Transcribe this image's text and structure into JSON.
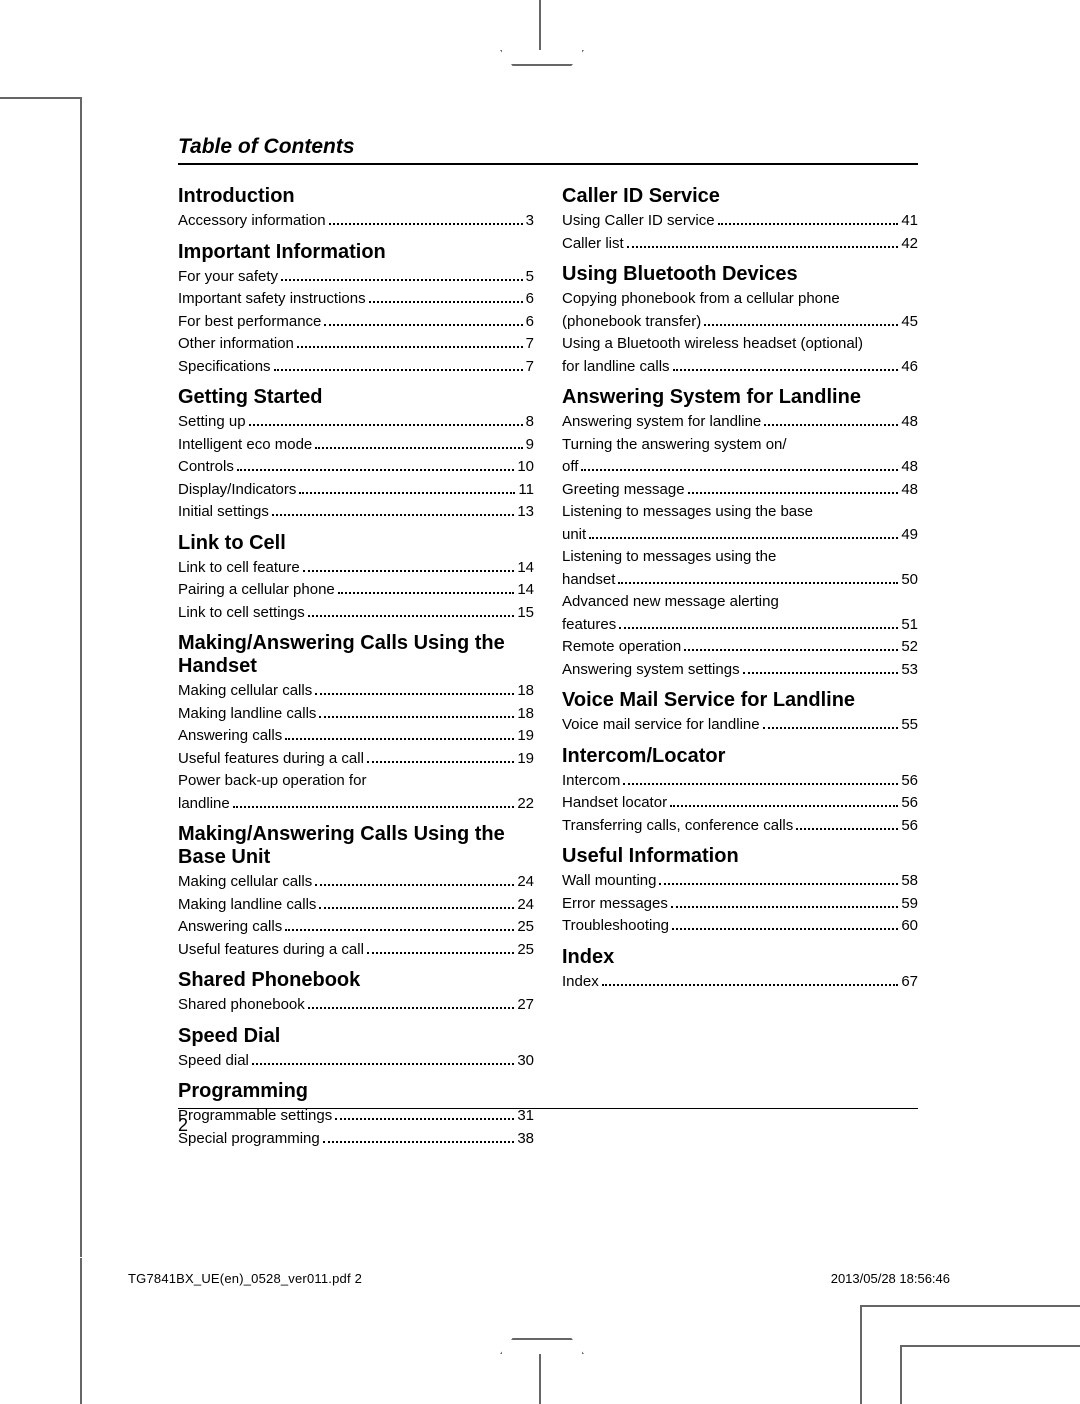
{
  "page": {
    "heading": "Table of Contents",
    "page_number": "2",
    "footer_left": "TG7841BX_UE(en)_0528_ver011.pdf   2",
    "footer_right": "2013/05/28   18:56:46"
  },
  "left": [
    {
      "type": "section",
      "title": "Introduction"
    },
    {
      "type": "entry",
      "label": "Accessory information",
      "page": "3"
    },
    {
      "type": "section",
      "title": "Important Information"
    },
    {
      "type": "entry",
      "label": "For your safety",
      "page": "5"
    },
    {
      "type": "entry",
      "label": "Important safety instructions",
      "page": "6"
    },
    {
      "type": "entry",
      "label": "For best performance",
      "page": "6"
    },
    {
      "type": "entry",
      "label": "Other information",
      "page": "7"
    },
    {
      "type": "entry",
      "label": "Specifications",
      "page": "7"
    },
    {
      "type": "section",
      "title": "Getting Started"
    },
    {
      "type": "entry",
      "label": "Setting up",
      "page": "8"
    },
    {
      "type": "entry",
      "label": "Intelligent eco mode",
      "page": "9"
    },
    {
      "type": "entry",
      "label": "Controls",
      "page": "10"
    },
    {
      "type": "entry",
      "label": "Display/Indicators",
      "page": "11"
    },
    {
      "type": "entry",
      "label": "Initial settings",
      "page": "13"
    },
    {
      "type": "section",
      "title": "Link to Cell"
    },
    {
      "type": "entry",
      "label": "Link to cell feature",
      "page": "14"
    },
    {
      "type": "entry",
      "label": "Pairing a cellular phone",
      "page": "14"
    },
    {
      "type": "entry",
      "label": "Link to cell settings",
      "page": "15"
    },
    {
      "type": "section",
      "title": "Making/Answering Calls Using the Handset"
    },
    {
      "type": "entry",
      "label": "Making cellular calls",
      "page": "18"
    },
    {
      "type": "entry",
      "label": "Making landline calls",
      "page": "18"
    },
    {
      "type": "entry",
      "label": "Answering calls",
      "page": "19"
    },
    {
      "type": "entry",
      "label": "Useful features during a call",
      "page": "19"
    },
    {
      "type": "cont",
      "label": "Power back-up operation for"
    },
    {
      "type": "entry",
      "label": "landline",
      "page": "22"
    },
    {
      "type": "section",
      "title": "Making/Answering Calls Using the Base Unit"
    },
    {
      "type": "entry",
      "label": "Making cellular calls",
      "page": "24"
    },
    {
      "type": "entry",
      "label": "Making landline calls",
      "page": "24"
    },
    {
      "type": "entry",
      "label": "Answering calls",
      "page": "25"
    },
    {
      "type": "entry",
      "label": "Useful features during a call",
      "page": "25"
    },
    {
      "type": "section",
      "title": "Shared Phonebook"
    },
    {
      "type": "entry",
      "label": "Shared phonebook",
      "page": "27"
    },
    {
      "type": "section",
      "title": "Speed Dial"
    },
    {
      "type": "entry",
      "label": "Speed dial",
      "page": "30"
    },
    {
      "type": "section",
      "title": "Programming"
    },
    {
      "type": "entry",
      "label": "Programmable settings",
      "page": "31"
    },
    {
      "type": "entry",
      "label": "Special programming",
      "page": "38"
    }
  ],
  "right": [
    {
      "type": "section",
      "title": "Caller ID Service"
    },
    {
      "type": "entry",
      "label": "Using Caller ID service",
      "page": "41"
    },
    {
      "type": "entry",
      "label": "Caller list",
      "page": "42"
    },
    {
      "type": "section",
      "title": "Using Bluetooth Devices"
    },
    {
      "type": "cont",
      "label": "Copying phonebook from a cellular phone"
    },
    {
      "type": "entry",
      "label": "(phonebook transfer)",
      "page": "45"
    },
    {
      "type": "cont",
      "label": "Using a Bluetooth wireless headset (optional)"
    },
    {
      "type": "entry",
      "label": "for landline calls",
      "page": "46"
    },
    {
      "type": "section",
      "title": "Answering System for Landline"
    },
    {
      "type": "entry",
      "label": "Answering system for landline",
      "page": "48"
    },
    {
      "type": "cont",
      "label": "Turning the answering system on/"
    },
    {
      "type": "entry",
      "label": "off",
      "page": "48"
    },
    {
      "type": "entry",
      "label": "Greeting message",
      "page": "48"
    },
    {
      "type": "cont",
      "label": "Listening to messages using the base"
    },
    {
      "type": "entry",
      "label": "unit",
      "page": "49"
    },
    {
      "type": "cont",
      "label": "Listening to messages using the"
    },
    {
      "type": "entry",
      "label": "handset",
      "page": "50"
    },
    {
      "type": "cont",
      "label": "Advanced new message alerting"
    },
    {
      "type": "entry",
      "label": "features",
      "page": "51"
    },
    {
      "type": "entry",
      "label": "Remote operation",
      "page": "52"
    },
    {
      "type": "entry",
      "label": "Answering system settings",
      "page": "53"
    },
    {
      "type": "section",
      "title": "Voice Mail Service for Landline"
    },
    {
      "type": "entry",
      "label": "Voice mail service for landline",
      "page": "55"
    },
    {
      "type": "section",
      "title": "Intercom/Locator"
    },
    {
      "type": "entry",
      "label": "Intercom",
      "page": "56"
    },
    {
      "type": "entry",
      "label": "Handset locator",
      "page": "56"
    },
    {
      "type": "entry",
      "label": "Transferring calls, conference calls",
      "page": "56"
    },
    {
      "type": "section",
      "title": "Useful Information"
    },
    {
      "type": "entry",
      "label": "Wall mounting",
      "page": "58"
    },
    {
      "type": "entry",
      "label": "Error messages",
      "page": "59"
    },
    {
      "type": "entry",
      "label": "Troubleshooting",
      "page": "60"
    },
    {
      "type": "section",
      "title": "Index"
    },
    {
      "type": "entry",
      "label": "Index",
      "page": "67"
    }
  ]
}
